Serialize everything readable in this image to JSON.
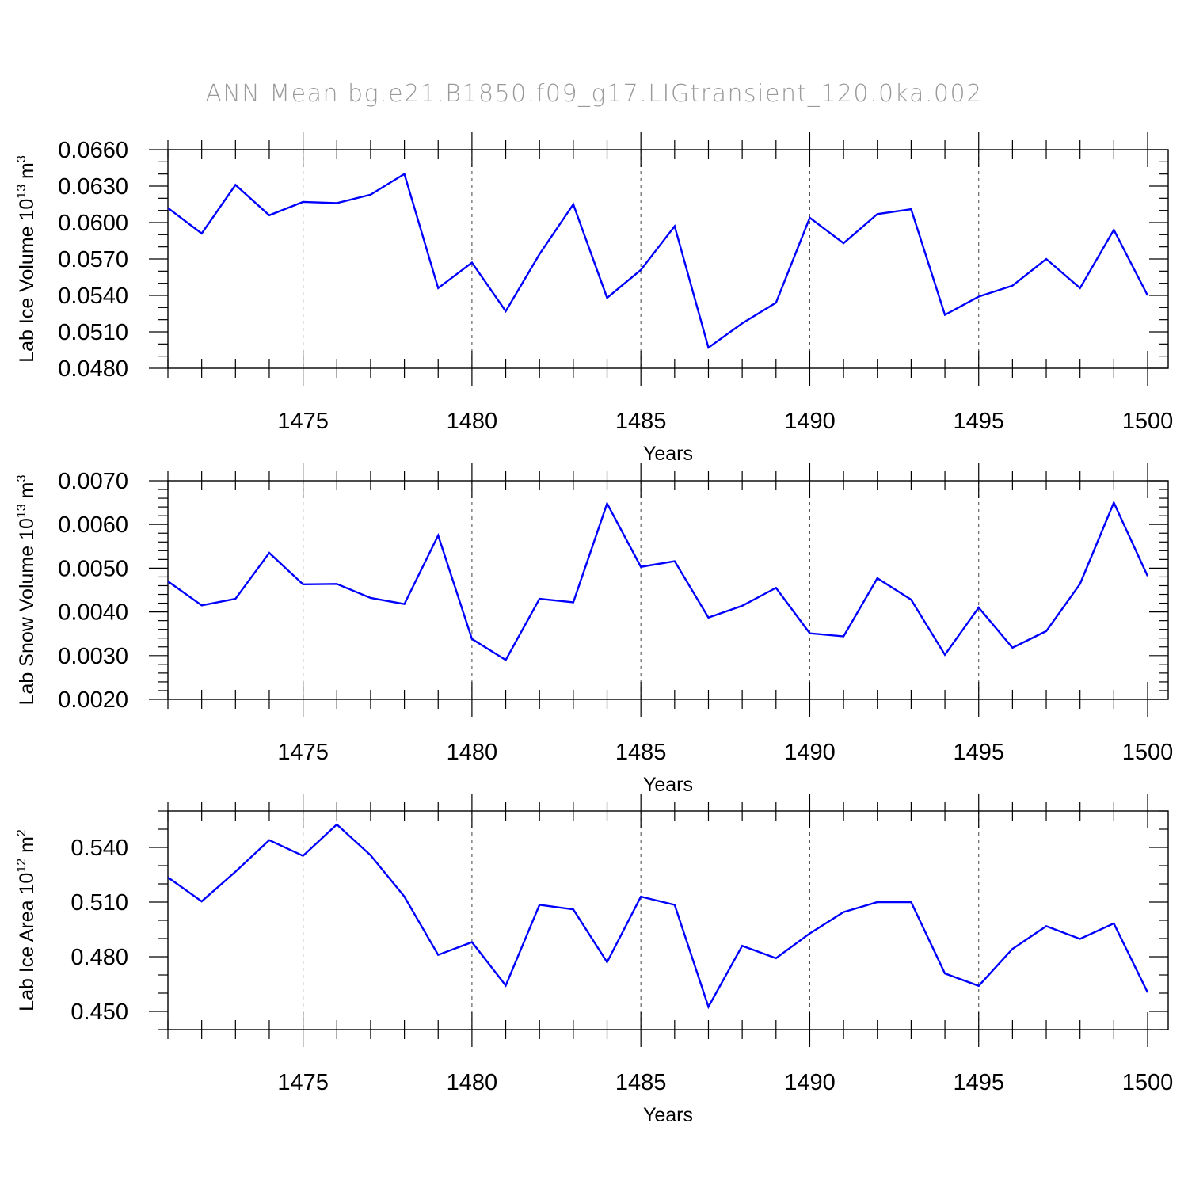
{
  "title": "ANN Mean bg.e21.B1850.f09_g17.LIGtransient_120.0ka.002",
  "colors": {
    "line": "#0000ff",
    "grid": "#555555",
    "title": "#9a9a9a"
  },
  "chart_data": [
    {
      "type": "line",
      "ylabel_main": "Lab Ice Volume 10",
      "ylabel_exp": "13",
      "ylabel_unit": " m",
      "ylabel_unit_exp": "3",
      "xlabel": "Years",
      "xlim": [
        1471,
        1500
      ],
      "ylim": [
        0.048,
        0.066
      ],
      "yticks": [
        "0.0480",
        "0.0510",
        "0.0540",
        "0.0570",
        "0.0600",
        "0.0630",
        "0.0660"
      ],
      "ytick_values": [
        0.048,
        0.051,
        0.054,
        0.057,
        0.06,
        0.063,
        0.066
      ],
      "y_minor_step": 0.001,
      "xticks": [
        "1475",
        "1480",
        "1485",
        "1490",
        "1495",
        "1500"
      ],
      "xtick_values": [
        1475,
        1480,
        1485,
        1490,
        1495,
        1500
      ],
      "grid": "x-dashed",
      "x": [
        1471,
        1472,
        1473,
        1474,
        1475,
        1476,
        1477,
        1478,
        1479,
        1480,
        1481,
        1482,
        1483,
        1484,
        1485,
        1486,
        1487,
        1488,
        1489,
        1490,
        1491,
        1492,
        1493,
        1494,
        1495,
        1496,
        1497,
        1498,
        1499,
        1500
      ],
      "series": [
        {
          "values": [
            0.0612,
            0.0591,
            0.0631,
            0.0606,
            0.0617,
            0.0616,
            0.0623,
            0.064,
            0.0546,
            0.0567,
            0.0527,
            0.0574,
            0.0615,
            0.0538,
            0.0561,
            0.0597,
            0.0497,
            0.0517,
            0.0534,
            0.0604,
            0.0583,
            0.0607,
            0.0611,
            0.0524,
            0.0539,
            0.0548,
            0.057,
            0.0546,
            0.0594,
            0.054
          ]
        }
      ]
    },
    {
      "type": "line",
      "ylabel_main": "Lab Snow Volume 10",
      "ylabel_exp": "13",
      "ylabel_unit": " m",
      "ylabel_unit_exp": "3",
      "xlabel": "Years",
      "xlim": [
        1471,
        1500
      ],
      "ylim": [
        0.002,
        0.007
      ],
      "yticks": [
        "0.0020",
        "0.0030",
        "0.0040",
        "0.0050",
        "0.0060",
        "0.0070"
      ],
      "ytick_values": [
        0.002,
        0.003,
        0.004,
        0.005,
        0.006,
        0.007
      ],
      "y_minor_step": 0.0002,
      "xticks": [
        "1475",
        "1480",
        "1485",
        "1490",
        "1495",
        "1500"
      ],
      "xtick_values": [
        1475,
        1480,
        1485,
        1490,
        1495,
        1500
      ],
      "grid": "x-dashed",
      "x": [
        1471,
        1472,
        1473,
        1474,
        1475,
        1476,
        1477,
        1478,
        1479,
        1480,
        1481,
        1482,
        1483,
        1484,
        1485,
        1486,
        1487,
        1488,
        1489,
        1490,
        1491,
        1492,
        1493,
        1494,
        1495,
        1496,
        1497,
        1498,
        1499,
        1500
      ],
      "series": [
        {
          "values": [
            0.0047,
            0.00415,
            0.0043,
            0.00535,
            0.00463,
            0.00464,
            0.00432,
            0.00418,
            0.00575,
            0.00338,
            0.0029,
            0.0043,
            0.00422,
            0.00648,
            0.00503,
            0.00516,
            0.00387,
            0.00414,
            0.00455,
            0.00351,
            0.00344,
            0.00477,
            0.00428,
            0.00302,
            0.0041,
            0.00318,
            0.00356,
            0.00464,
            0.0065,
            0.00482
          ]
        }
      ]
    },
    {
      "type": "line",
      "ylabel_main": "Lab Ice Area 10",
      "ylabel_exp": "12",
      "ylabel_unit": " m",
      "ylabel_unit_exp": "2",
      "xlabel": "Years",
      "xlim": [
        1471,
        1500
      ],
      "ylim": [
        0.44,
        0.56
      ],
      "yticks": [
        "0.450",
        "0.480",
        "0.510",
        "0.540"
      ],
      "ytick_values": [
        0.45,
        0.48,
        0.51,
        0.54
      ],
      "y_minor_step": 0.01,
      "xticks": [
        "1475",
        "1480",
        "1485",
        "1490",
        "1495",
        "1500"
      ],
      "xtick_values": [
        1475,
        1480,
        1485,
        1490,
        1495,
        1500
      ],
      "grid": "x-dashed",
      "x": [
        1471,
        1472,
        1473,
        1474,
        1475,
        1476,
        1477,
        1478,
        1479,
        1480,
        1481,
        1482,
        1483,
        1484,
        1485,
        1486,
        1487,
        1488,
        1489,
        1490,
        1491,
        1492,
        1493,
        1494,
        1495,
        1496,
        1497,
        1498,
        1499,
        1500
      ],
      "series": [
        {
          "values": [
            0.5236,
            0.5104,
            0.5267,
            0.544,
            0.5354,
            0.5526,
            0.5357,
            0.513,
            0.481,
            0.488,
            0.4642,
            0.5085,
            0.506,
            0.477,
            0.513,
            0.5085,
            0.4525,
            0.486,
            0.4792,
            0.4928,
            0.5045,
            0.51,
            0.51,
            0.4708,
            0.464,
            0.4843,
            0.4968,
            0.4898,
            0.4983,
            0.4604
          ]
        }
      ]
    }
  ]
}
